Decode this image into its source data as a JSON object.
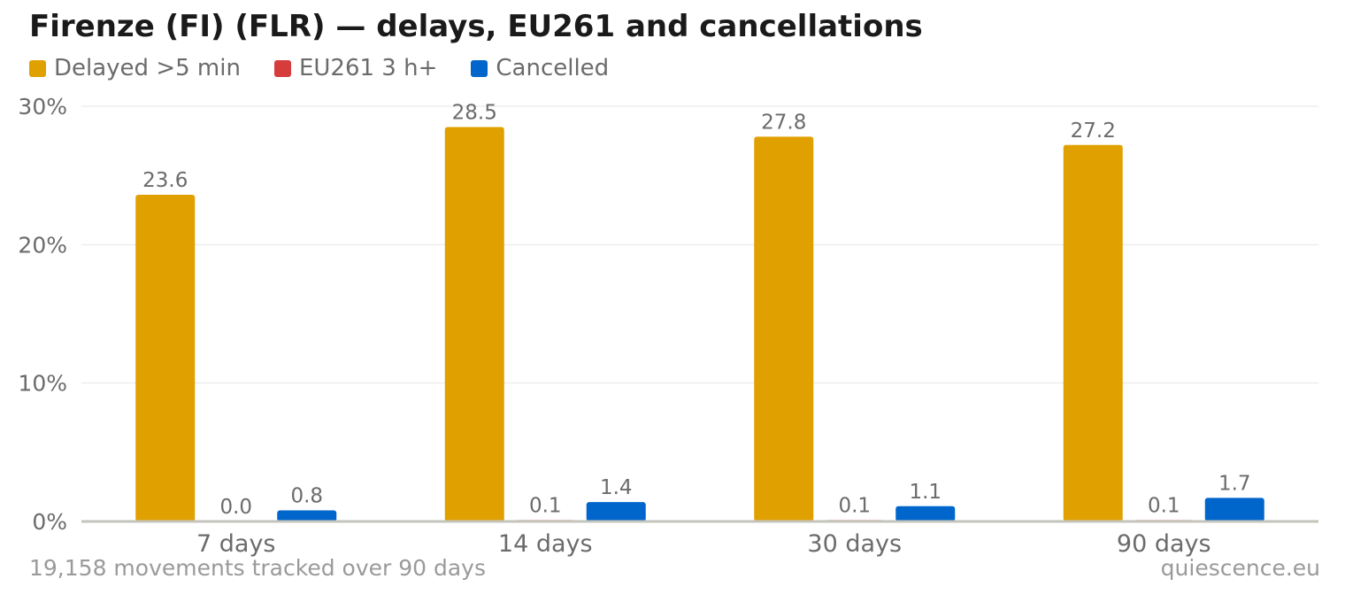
{
  "chart_data": {
    "type": "bar",
    "title": "Firenze (FI) (FLR) — delays, EU261 and cancellations",
    "categories": [
      "7 days",
      "14 days",
      "30 days",
      "90 days"
    ],
    "series": [
      {
        "name": "Delayed >5 min",
        "color": "#e0a000",
        "values": [
          23.6,
          28.5,
          27.8,
          27.2
        ]
      },
      {
        "name": "EU261 3 h+",
        "color": "#d63c3c",
        "values": [
          0.0,
          0.1,
          0.1,
          0.1
        ]
      },
      {
        "name": "Cancelled",
        "color": "#0066cc",
        "values": [
          0.8,
          1.4,
          1.1,
          1.7
        ]
      }
    ],
    "ylim": [
      0,
      30
    ],
    "yticks": [
      "0%",
      "10%",
      "20%",
      "30%"
    ],
    "ytick_values": [
      0,
      10,
      20,
      30
    ],
    "grid": true,
    "legend_position": "top-left"
  },
  "footer": {
    "note": "19,158 movements tracked over 90 days",
    "source": "quiescence.eu"
  }
}
